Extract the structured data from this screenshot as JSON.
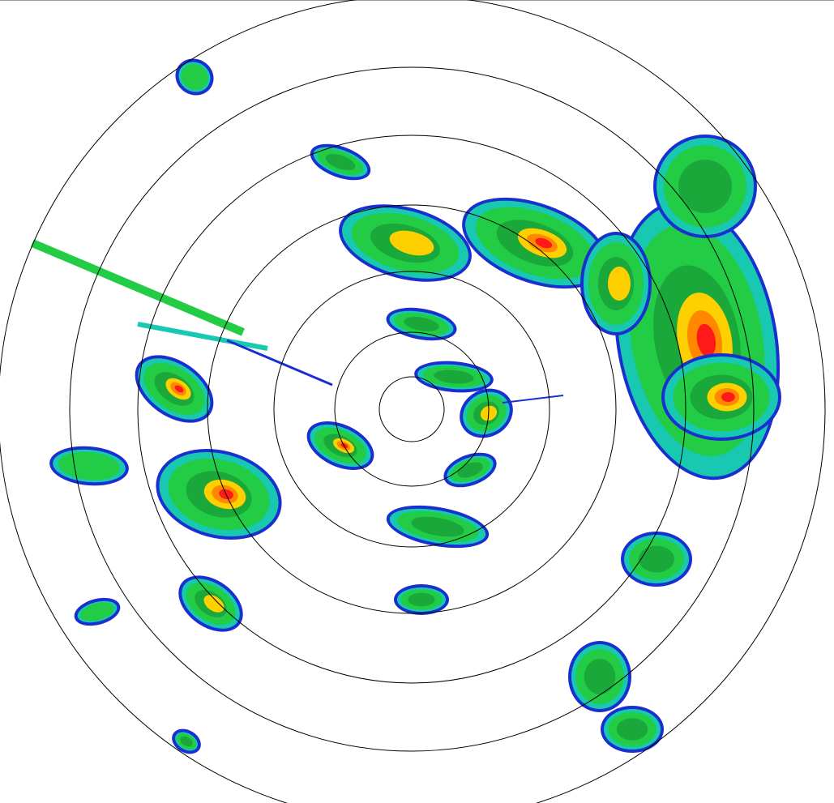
{
  "radar": {
    "range_rings": 7,
    "reflectivity_palette": {
      "weak": "#1a2fd0",
      "light": "#18c8b0",
      "moderate": "#22cc44",
      "strong": "#1aa83a",
      "heavy": "#ffd000",
      "intense": "#ff8800",
      "extreme": "#ff1a1a"
    }
  }
}
